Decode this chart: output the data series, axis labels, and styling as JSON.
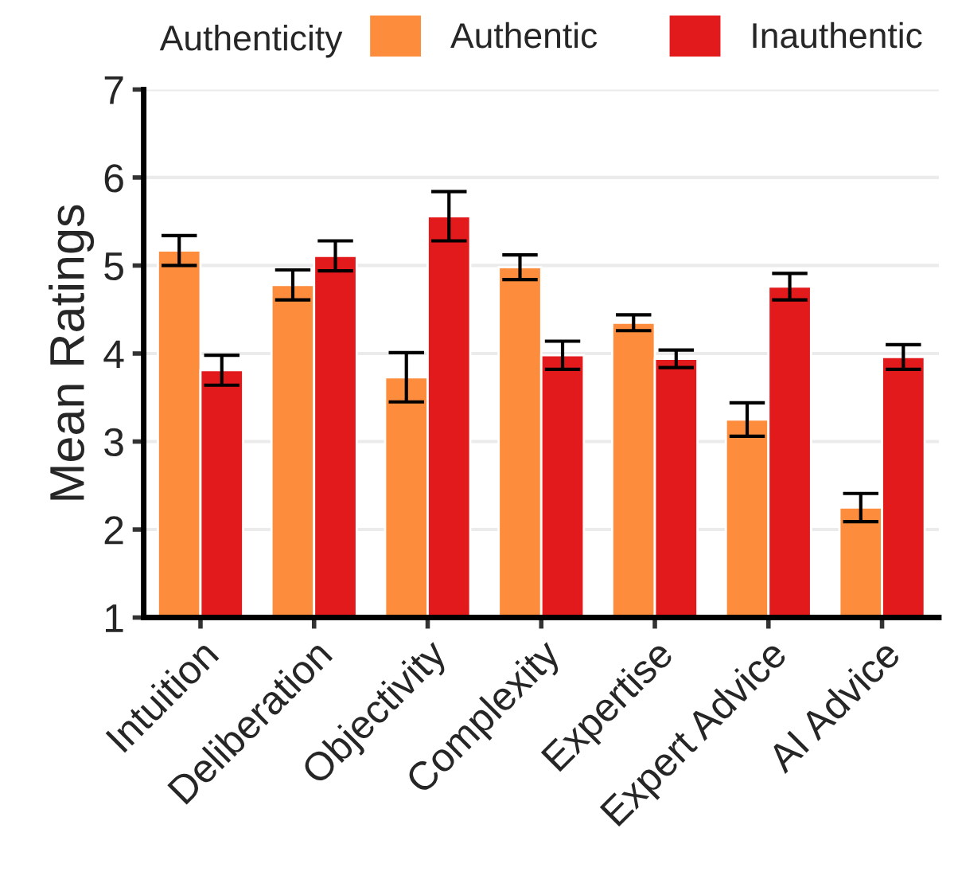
{
  "chart_data": {
    "type": "bar",
    "ylabel": "Mean Ratings",
    "legend_title": "Authenticity",
    "categories": [
      "Intuition",
      "Deliberation",
      "Objectivity",
      "Complexity",
      "Expertise",
      "Expert Advice",
      "AI Advice"
    ],
    "series": [
      {
        "name": "Authentic",
        "color": "#fd8d3c",
        "values": [
          5.17,
          4.78,
          3.73,
          4.98,
          4.35,
          3.25,
          2.25
        ],
        "errors": [
          0.17,
          0.17,
          0.28,
          0.14,
          0.09,
          0.19,
          0.16
        ]
      },
      {
        "name": "Inauthentic",
        "color": "#e31a1c",
        "values": [
          3.81,
          5.11,
          5.56,
          3.98,
          3.94,
          4.76,
          3.96
        ],
        "errors": [
          0.17,
          0.17,
          0.28,
          0.16,
          0.1,
          0.15,
          0.14
        ]
      }
    ],
    "ylim": [
      1,
      7
    ],
    "yticks": [
      1,
      2,
      3,
      4,
      5,
      6,
      7
    ],
    "grid": "y",
    "legend": "top"
  }
}
